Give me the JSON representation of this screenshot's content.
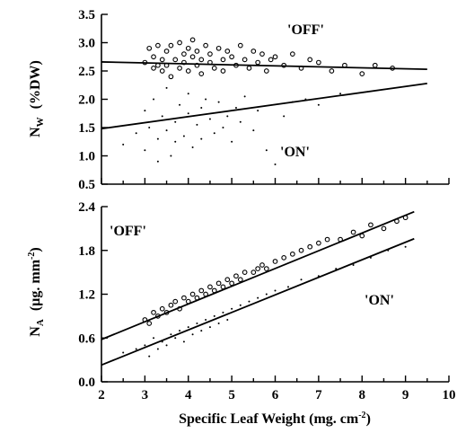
{
  "chart_data": [
    {
      "type": "scatter",
      "panel": "top",
      "ylabel": "N_W (%DW)",
      "ylabel_parts": {
        "main": "N",
        "sub": "W",
        "unit": "(%DW)"
      },
      "xlim": [
        2,
        10
      ],
      "ylim": [
        0.5,
        3.5
      ],
      "yticks": [
        0.5,
        1.0,
        1.5,
        2.0,
        2.5,
        3.0,
        3.5
      ],
      "yticklabels": [
        "0.5",
        "1.0",
        "1.5",
        "2.0",
        "2.5",
        "3.0",
        "3.5"
      ],
      "annotations": [
        "'OFF'",
        "'ON'"
      ],
      "series": [
        {
          "marker": "open-circle",
          "x": [
            3.0,
            3.1,
            3.2,
            3.2,
            3.3,
            3.3,
            3.4,
            3.4,
            3.5,
            3.5,
            3.6,
            3.6,
            3.7,
            3.8,
            3.8,
            3.9,
            3.9,
            4.0,
            4.0,
            4.1,
            4.1,
            4.2,
            4.2,
            4.3,
            4.3,
            4.4,
            4.5,
            4.5,
            4.6,
            4.7,
            4.8,
            4.8,
            4.9,
            5.0,
            5.1,
            5.2,
            5.3,
            5.4,
            5.5,
            5.6,
            5.7,
            5.8,
            5.9,
            6.0,
            6.2,
            6.4,
            6.6,
            6.8,
            7.0,
            7.3,
            7.6,
            8.0,
            8.3,
            8.7
          ],
          "y": [
            2.65,
            2.9,
            2.55,
            2.75,
            2.95,
            2.6,
            2.7,
            2.5,
            2.85,
            2.6,
            2.4,
            2.95,
            2.7,
            3.0,
            2.55,
            2.8,
            2.65,
            2.9,
            2.5,
            2.75,
            3.05,
            2.6,
            2.85,
            2.7,
            2.45,
            2.95,
            2.65,
            2.8,
            2.55,
            2.9,
            2.7,
            2.5,
            2.85,
            2.75,
            2.6,
            2.95,
            2.7,
            2.55,
            2.85,
            2.65,
            2.8,
            2.5,
            2.7,
            2.75,
            2.6,
            2.8,
            2.55,
            2.7,
            2.65,
            2.5,
            2.6,
            2.45,
            2.6,
            2.55
          ]
        },
        {
          "marker": "small-dot",
          "x": [
            2.5,
            2.8,
            3.0,
            3.0,
            3.1,
            3.2,
            3.3,
            3.3,
            3.4,
            3.5,
            3.5,
            3.6,
            3.7,
            3.7,
            3.8,
            3.9,
            4.0,
            4.0,
            4.1,
            4.2,
            4.3,
            4.3,
            4.4,
            4.5,
            4.6,
            4.7,
            4.8,
            4.9,
            5.0,
            5.1,
            5.2,
            5.3,
            5.5,
            5.6,
            5.8,
            6.0,
            6.2,
            6.4,
            6.7,
            7.0,
            7.5
          ],
          "y": [
            1.2,
            1.4,
            1.8,
            1.1,
            1.5,
            2.0,
            1.3,
            0.9,
            1.7,
            1.45,
            2.2,
            1.0,
            1.6,
            1.25,
            1.9,
            1.35,
            1.75,
            2.1,
            1.15,
            1.55,
            1.85,
            1.3,
            2.0,
            1.65,
            1.4,
            1.95,
            1.5,
            1.7,
            1.25,
            1.85,
            1.6,
            2.05,
            1.45,
            1.8,
            1.1,
            0.85,
            1.7,
            1.95,
            2.0,
            1.9,
            2.1
          ]
        }
      ],
      "fit_lines": [
        {
          "label": "'OFF'",
          "x": [
            2,
            9.5
          ],
          "y": [
            2.66,
            2.53
          ]
        },
        {
          "label": "'ON'",
          "x": [
            2,
            9.5
          ],
          "y": [
            1.48,
            2.28
          ]
        }
      ]
    },
    {
      "type": "scatter",
      "panel": "bottom",
      "xlabel": "Specific Leaf Weight  (mg. cm-2)",
      "xlabel_parts": {
        "main": "Specific Leaf Weight  (mg. cm",
        "sup": "-2",
        "close": ")"
      },
      "ylabel": "N_A (µg. mm-2)",
      "ylabel_parts": {
        "main": "N",
        "sub": "A",
        "unit": "(µg. mm",
        "sup": "-2",
        "close": ")"
      },
      "xlim": [
        2,
        10
      ],
      "ylim": [
        0.0,
        2.4
      ],
      "xticks": [
        2,
        3,
        4,
        5,
        6,
        7,
        8,
        9,
        10
      ],
      "xticklabels": [
        "2",
        "3",
        "4",
        "5",
        "6",
        "7",
        "8",
        "9",
        "10"
      ],
      "yticks": [
        0.0,
        0.6,
        1.2,
        1.8,
        2.4
      ],
      "yticklabels": [
        "0.0",
        "0.6",
        "1.2",
        "1.8",
        "2.4"
      ],
      "annotations": [
        "'OFF'",
        "'ON'"
      ],
      "series": [
        {
          "marker": "open-circle",
          "x": [
            3.0,
            3.1,
            3.2,
            3.3,
            3.4,
            3.5,
            3.6,
            3.7,
            3.8,
            3.9,
            4.0,
            4.1,
            4.2,
            4.3,
            4.4,
            4.5,
            4.6,
            4.7,
            4.8,
            4.9,
            5.0,
            5.1,
            5.2,
            5.3,
            5.5,
            5.6,
            5.7,
            5.8,
            6.0,
            6.2,
            6.4,
            6.6,
            6.8,
            7.0,
            7.2,
            7.5,
            7.8,
            8.0,
            8.2,
            8.5,
            8.8,
            9.0
          ],
          "y": [
            0.85,
            0.8,
            0.95,
            0.9,
            1.0,
            0.95,
            1.05,
            1.1,
            1.0,
            1.15,
            1.1,
            1.2,
            1.15,
            1.25,
            1.2,
            1.3,
            1.25,
            1.35,
            1.3,
            1.4,
            1.35,
            1.45,
            1.4,
            1.5,
            1.5,
            1.55,
            1.6,
            1.55,
            1.65,
            1.7,
            1.75,
            1.8,
            1.85,
            1.9,
            1.95,
            1.95,
            2.05,
            2.0,
            2.15,
            2.1,
            2.2,
            2.25
          ]
        },
        {
          "marker": "small-dot",
          "x": [
            2.5,
            2.8,
            3.0,
            3.1,
            3.2,
            3.3,
            3.4,
            3.5,
            3.6,
            3.7,
            3.8,
            3.9,
            4.0,
            4.1,
            4.2,
            4.3,
            4.4,
            4.5,
            4.6,
            4.7,
            4.8,
            4.9,
            5.0,
            5.2,
            5.4,
            5.6,
            5.8,
            6.0,
            6.3,
            6.6,
            7.0,
            7.4,
            7.8,
            8.2,
            8.6,
            9.0
          ],
          "y": [
            0.4,
            0.45,
            0.5,
            0.35,
            0.6,
            0.45,
            0.55,
            0.5,
            0.65,
            0.6,
            0.7,
            0.55,
            0.75,
            0.65,
            0.8,
            0.7,
            0.85,
            0.75,
            0.9,
            0.8,
            0.95,
            0.85,
            1.0,
            1.05,
            1.1,
            1.15,
            1.2,
            1.25,
            1.3,
            1.4,
            1.45,
            1.55,
            1.6,
            1.7,
            1.8,
            1.85
          ]
        }
      ],
      "fit_lines": [
        {
          "label": "'OFF'",
          "x": [
            2,
            9.2
          ],
          "y": [
            0.58,
            2.33
          ]
        },
        {
          "label": "'ON'",
          "x": [
            2,
            9.2
          ],
          "y": [
            0.23,
            1.96
          ]
        }
      ]
    }
  ]
}
